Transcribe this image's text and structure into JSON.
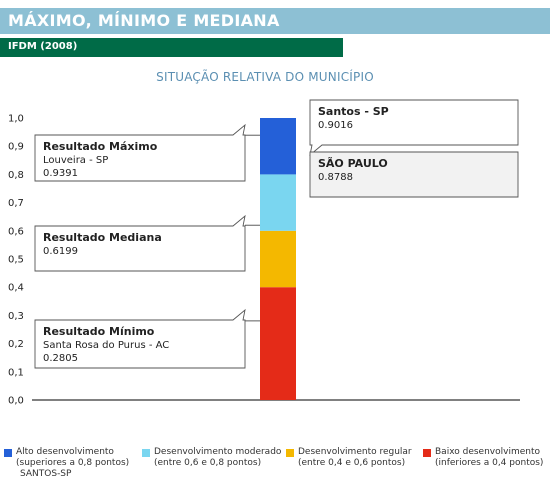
{
  "header": {
    "title": "MÁXIMO, MÍNIMO E MEDIANA"
  },
  "subheader": {
    "title": "IFDM (2008)"
  },
  "chart_data": {
    "type": "bar",
    "title": "SITUAÇÃO RELATIVA DO MUNICÍPIO",
    "ylim": [
      0,
      1.0
    ],
    "yticks": [
      "1,0",
      "0,9",
      "0,8",
      "0,7",
      "0,6",
      "0,5",
      "0,4",
      "0,3",
      "0,2",
      "0,1",
      "0,0"
    ],
    "bands": [
      {
        "from": 0.0,
        "to": 0.4,
        "color": "#e42b18"
      },
      {
        "from": 0.4,
        "to": 0.6,
        "color": "#f4b800"
      },
      {
        "from": 0.6,
        "to": 0.8,
        "color": "#7ad6f0"
      },
      {
        "from": 0.8,
        "to": 1.0,
        "color": "#2460d8"
      }
    ],
    "callouts": [
      {
        "title": "Resultado Máximo",
        "lines": [
          "Louveira - SP",
          "0.9391"
        ],
        "value": 0.9391
      },
      {
        "title": "Resultado Mediana",
        "lines": [
          "0.6199"
        ],
        "value": 0.6199
      },
      {
        "title": "Resultado Mínimo",
        "lines": [
          "Santa Rosa do Purus - AC",
          "0.2805"
        ],
        "value": 0.2805
      },
      {
        "title": "Santos - SP",
        "lines": [
          "0.9016"
        ],
        "value": 0.9016
      },
      {
        "title": "SÃO PAULO",
        "lines": [
          "0.8788"
        ],
        "value": 0.8788
      }
    ]
  },
  "legend": {
    "items": [
      {
        "color": "#2460d8",
        "line1": "Alto desenvolvimento",
        "line2": "(superiores a 0,8 pontos)"
      },
      {
        "color": "#7ad6f0",
        "line1": "Desenvolvimento moderado",
        "line2": "(entre 0,6 e 0,8 pontos)"
      },
      {
        "color": "#f4b800",
        "line1": "Desenvolvimento regular",
        "line2": "(entre 0,4 e 0,6 pontos)"
      },
      {
        "color": "#e42b18",
        "line1": "Baixo desenvolvimento",
        "line2": "(inferiores a 0,4 pontos)"
      }
    ],
    "footer": "SANTOS-SP"
  }
}
